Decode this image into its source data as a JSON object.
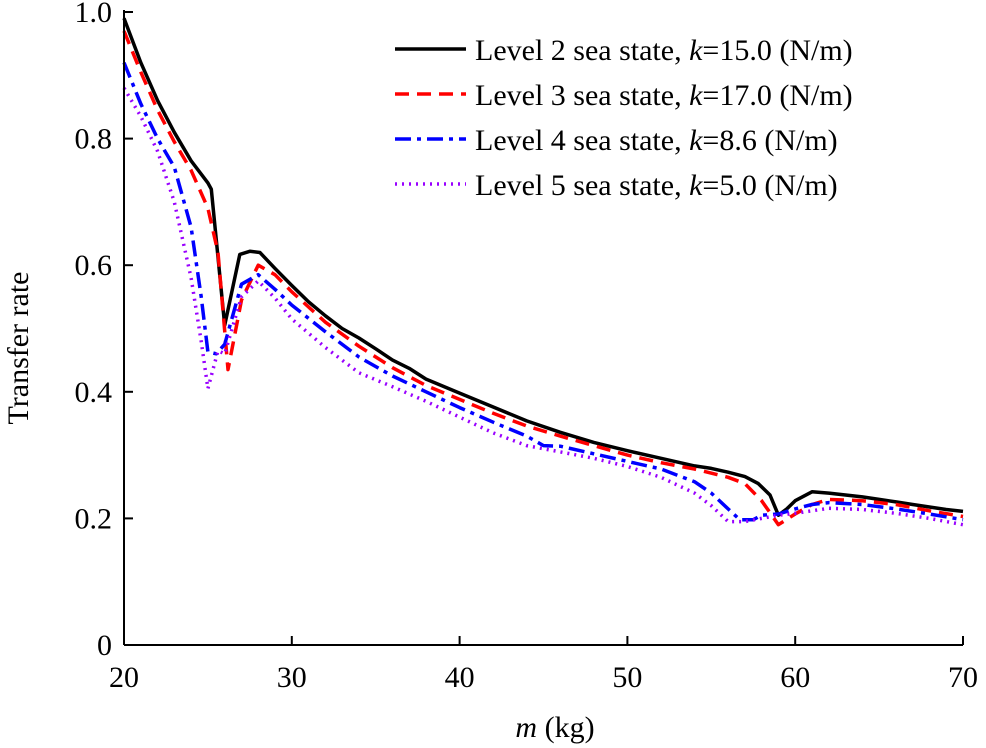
{
  "chart_data": {
    "type": "line",
    "title": "",
    "xlabel_italic": "m",
    "xlabel_rest": " (kg)",
    "ylabel": "Transfer rate",
    "xlim": [
      20,
      70
    ],
    "ylim": [
      0,
      1.0
    ],
    "xticks": [
      20,
      30,
      40,
      50,
      60,
      70
    ],
    "xtick_labels": [
      "20",
      "30",
      "40",
      "50",
      "60",
      "70"
    ],
    "yticks": [
      0,
      0.2,
      0.4,
      0.6,
      0.8,
      1.0
    ],
    "ytick_labels": [
      "0",
      "0.2",
      "0.4",
      "0.6",
      "0.8",
      "1.0"
    ],
    "legend_position": "top-right",
    "series": [
      {
        "name": "Level 2 sea state",
        "legend_prefix": "Level 2 sea state, ",
        "legend_k": "k",
        "legend_suffix": "=15.0 (N/m)",
        "color": "#000000",
        "dash": "",
        "x": [
          20,
          21,
          22,
          23,
          24,
          25,
          25.2,
          26,
          26.9,
          27.5,
          28.1,
          29,
          30,
          31,
          32,
          33,
          34,
          35,
          36,
          37,
          38,
          40,
          42,
          44,
          46,
          48,
          50,
          52,
          54,
          55,
          56,
          57,
          57.8,
          58.5,
          59,
          59.5,
          60,
          61,
          62,
          63,
          64,
          65,
          66,
          67,
          68,
          69,
          70
        ],
        "y": [
          0.99,
          0.92,
          0.86,
          0.81,
          0.765,
          0.73,
          0.72,
          0.505,
          0.617,
          0.622,
          0.62,
          0.595,
          0.568,
          0.542,
          0.52,
          0.5,
          0.485,
          0.468,
          0.45,
          0.437,
          0.42,
          0.398,
          0.376,
          0.354,
          0.336,
          0.32,
          0.307,
          0.295,
          0.283,
          0.279,
          0.273,
          0.266,
          0.255,
          0.237,
          0.205,
          0.215,
          0.228,
          0.242,
          0.24,
          0.237,
          0.234,
          0.23,
          0.226,
          0.222,
          0.218,
          0.214,
          0.211
        ]
      },
      {
        "name": "Level 3 sea state",
        "legend_prefix": "Level 3 sea state, ",
        "legend_k": "k",
        "legend_suffix": "=17.0 (N/m)",
        "color": "#ff0000",
        "dash": "14,8",
        "x": [
          20,
          21,
          22,
          23,
          24,
          25,
          25.6,
          26.2,
          27,
          28,
          29,
          30,
          32,
          34,
          36,
          38,
          40,
          42,
          44,
          46,
          48,
          50,
          52,
          54,
          56,
          57,
          58,
          59,
          60,
          61,
          62,
          64,
          66,
          68,
          70
        ],
        "y": [
          0.97,
          0.905,
          0.845,
          0.795,
          0.75,
          0.69,
          0.62,
          0.435,
          0.545,
          0.6,
          0.585,
          0.558,
          0.51,
          0.472,
          0.438,
          0.41,
          0.388,
          0.366,
          0.346,
          0.33,
          0.315,
          0.3,
          0.288,
          0.278,
          0.265,
          0.255,
          0.228,
          0.19,
          0.207,
          0.222,
          0.23,
          0.228,
          0.222,
          0.212,
          0.203
        ]
      },
      {
        "name": "Level 4 sea state",
        "legend_prefix": "Level 4 sea state, ",
        "legend_k": "k",
        "legend_suffix": "=8.6 (N/m)",
        "color": "#0000ff",
        "dash": "16,6,4,6",
        "x": [
          20,
          21,
          22,
          23,
          24,
          24.6,
          25,
          25.5,
          26,
          27,
          28,
          29,
          30,
          32,
          34,
          36,
          38,
          40,
          42,
          44,
          45,
          46,
          48,
          50,
          52,
          54,
          55,
          56,
          56.7,
          57.5,
          58,
          59,
          60,
          61,
          62,
          64,
          66,
          68,
          70
        ],
        "y": [
          0.92,
          0.855,
          0.8,
          0.755,
          0.66,
          0.55,
          0.463,
          0.46,
          0.475,
          0.57,
          0.585,
          0.562,
          0.537,
          0.495,
          0.455,
          0.425,
          0.4,
          0.375,
          0.352,
          0.33,
          0.315,
          0.314,
          0.302,
          0.29,
          0.278,
          0.258,
          0.24,
          0.215,
          0.198,
          0.198,
          0.205,
          0.207,
          0.215,
          0.222,
          0.225,
          0.222,
          0.215,
          0.207,
          0.198
        ]
      },
      {
        "name": "Level 5 sea state",
        "legend_prefix": "Level 5 sea state, ",
        "legend_k": "k",
        "legend_suffix": "=5.0 (N/m)",
        "color": "#9900ff",
        "dash": "2,5",
        "x": [
          20,
          21,
          22,
          23,
          24,
          24.6,
          25,
          25.6,
          26,
          27,
          28,
          29,
          30,
          32,
          34,
          36,
          38,
          40,
          42,
          44,
          46,
          48,
          50,
          52,
          54,
          55,
          56,
          57,
          58,
          59,
          60,
          61,
          62,
          64,
          66,
          68,
          70
        ],
        "y": [
          0.88,
          0.835,
          0.78,
          0.7,
          0.58,
          0.48,
          0.405,
          0.465,
          0.46,
          0.55,
          0.575,
          0.548,
          0.515,
          0.47,
          0.43,
          0.408,
          0.385,
          0.36,
          0.335,
          0.315,
          0.305,
          0.295,
          0.282,
          0.265,
          0.24,
          0.22,
          0.195,
          0.195,
          0.2,
          0.205,
          0.208,
          0.212,
          0.216,
          0.214,
          0.208,
          0.2,
          0.19
        ]
      }
    ]
  }
}
